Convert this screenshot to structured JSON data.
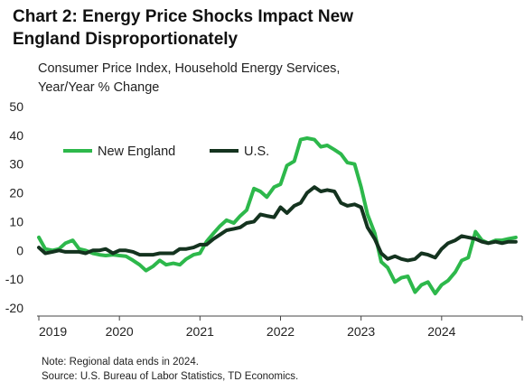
{
  "title_line1": "Chart 2: Energy Price Shocks Impact New",
  "title_line2": "England Disproportionately",
  "subtitle_line1": "Consumer Price Index, Household Energy Services,",
  "subtitle_line2": "Year/Year % Change",
  "note": "Note: Regional data ends in 2024.",
  "source": "Source: U.S. Bureau of Labor Statistics, TD Economics.",
  "chart_data": {
    "type": "line",
    "title": "Chart 2: Energy Price Shocks Impact New England Disproportionately",
    "ylabel": "Consumer Price Index, Household Energy Services, Year/Year % Change",
    "xlabel": "",
    "ylim": [
      -20,
      50
    ],
    "xlim": [
      2019,
      2025
    ],
    "yticks": [
      "50",
      "40",
      "30",
      "20",
      "10",
      "0",
      "-10",
      "-20"
    ],
    "xticks": [
      "2019",
      "2020",
      "2021",
      "2022",
      "2023",
      "2024"
    ],
    "grid": false,
    "legend": "top-left",
    "series": [
      {
        "name": "New England",
        "color": "#2db84b",
        "x": [
          2019.0,
          2019.08,
          2019.17,
          2019.25,
          2019.33,
          2019.42,
          2019.5,
          2019.58,
          2019.67,
          2019.75,
          2019.83,
          2019.92,
          2020.0,
          2020.08,
          2020.17,
          2020.25,
          2020.33,
          2020.42,
          2020.5,
          2020.58,
          2020.67,
          2020.75,
          2020.83,
          2020.92,
          2021.0,
          2021.08,
          2021.17,
          2021.25,
          2021.33,
          2021.42,
          2021.5,
          2021.58,
          2021.67,
          2021.75,
          2021.83,
          2021.92,
          2022.0,
          2022.08,
          2022.17,
          2022.25,
          2022.33,
          2022.42,
          2022.5,
          2022.58,
          2022.67,
          2022.75,
          2022.83,
          2022.92,
          2023.0,
          2023.08,
          2023.17,
          2023.25,
          2023.33,
          2023.42,
          2023.5,
          2023.58,
          2023.67,
          2023.75,
          2023.83,
          2023.92,
          2024.0,
          2024.08,
          2024.17,
          2024.25,
          2024.33,
          2024.42,
          2024.5,
          2024.58,
          2024.67,
          2024.75,
          2024.83,
          2024.92
        ],
        "y": [
          4.5,
          0.5,
          0.0,
          0.5,
          2.5,
          3.5,
          0.5,
          0.0,
          -1.0,
          -1.5,
          -1.8,
          -1.5,
          -1.8,
          -2.0,
          -3.5,
          -5.0,
          -7.0,
          -5.5,
          -3.5,
          -5.0,
          -4.5,
          -5.0,
          -3.0,
          -1.5,
          -1.0,
          3.0,
          6.0,
          8.5,
          10.5,
          9.5,
          12.0,
          14.0,
          21.5,
          20.5,
          18.5,
          22.0,
          23.0,
          29.5,
          31.0,
          38.5,
          39.0,
          38.5,
          36.0,
          36.5,
          35.0,
          33.5,
          30.5,
          30.0,
          22.0,
          12.5,
          6.0,
          -4.0,
          -6.0,
          -11.0,
          -9.5,
          -9.0,
          -14.5,
          -12.0,
          -11.0,
          -15.0,
          -12.0,
          -10.5,
          -7.5,
          -3.5,
          -2.5,
          6.5,
          3.5,
          2.5,
          3.5,
          3.5,
          4.0,
          4.5
        ]
      },
      {
        "name": "U.S.",
        "color": "#14331f",
        "x": [
          2019.0,
          2019.08,
          2019.17,
          2019.25,
          2019.33,
          2019.42,
          2019.5,
          2019.58,
          2019.67,
          2019.75,
          2019.83,
          2019.92,
          2020.0,
          2020.08,
          2020.17,
          2020.25,
          2020.33,
          2020.42,
          2020.5,
          2020.58,
          2020.67,
          2020.75,
          2020.83,
          2020.92,
          2021.0,
          2021.08,
          2021.17,
          2021.25,
          2021.33,
          2021.42,
          2021.5,
          2021.58,
          2021.67,
          2021.75,
          2021.83,
          2021.92,
          2022.0,
          2022.08,
          2022.17,
          2022.25,
          2022.33,
          2022.42,
          2022.5,
          2022.58,
          2022.67,
          2022.75,
          2022.83,
          2022.92,
          2023.0,
          2023.08,
          2023.17,
          2023.25,
          2023.33,
          2023.42,
          2023.5,
          2023.58,
          2023.67,
          2023.75,
          2023.83,
          2023.92,
          2024.0,
          2024.08,
          2024.17,
          2024.25,
          2024.33,
          2024.42,
          2024.5,
          2024.58,
          2024.67,
          2024.75,
          2024.83,
          2024.92
        ],
        "y": [
          1.0,
          -1.0,
          -0.5,
          0.0,
          -0.5,
          -0.5,
          -0.5,
          -1.0,
          0.0,
          0.0,
          0.5,
          -1.0,
          0.0,
          0.0,
          -0.5,
          -1.5,
          -1.5,
          -1.5,
          -1.0,
          -1.0,
          -1.0,
          0.5,
          0.5,
          1.0,
          2.0,
          2.0,
          4.0,
          5.5,
          7.0,
          7.5,
          8.0,
          9.5,
          10.0,
          12.5,
          12.0,
          11.5,
          15.0,
          13.0,
          15.5,
          16.5,
          20.0,
          22.0,
          20.5,
          21.0,
          20.5,
          16.5,
          15.5,
          16.0,
          15.0,
          8.0,
          4.0,
          -1.0,
          -3.0,
          -2.0,
          -3.0,
          -3.5,
          -3.0,
          -1.0,
          -1.5,
          -2.5,
          0.5,
          2.5,
          3.5,
          5.0,
          4.5,
          4.0,
          3.0,
          2.5,
          3.0,
          2.5,
          3.0,
          3.0
        ]
      }
    ]
  }
}
